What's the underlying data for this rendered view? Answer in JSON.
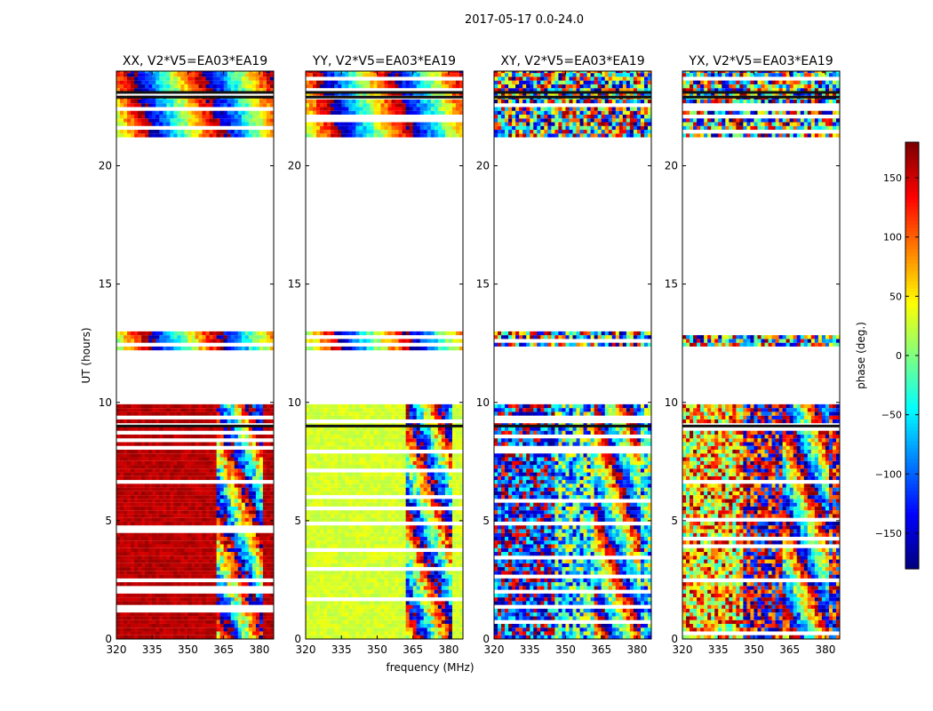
{
  "chart_data": {
    "type": "heatmap",
    "title": "2017-05-17 0.0-24.0",
    "xlabel": "frequency (MHz)",
    "ylabel": "UT (hours)",
    "xlim": [
      320,
      386
    ],
    "ylim": [
      0,
      24
    ],
    "x_ticks": [
      320,
      335,
      350,
      365,
      380
    ],
    "y_ticks": [
      0,
      5,
      10,
      15,
      20
    ],
    "panels": [
      {
        "title": "XX, V2*V5=EA03*EA19",
        "pol": "XX",
        "base_phase": 160
      },
      {
        "title": "YY, V2*V5=EA03*EA19",
        "pol": "YY",
        "base_phase": 30
      },
      {
        "title": "XY, V2*V5=EA03*EA19",
        "pol": "XY",
        "base_phase": -80
      },
      {
        "title": "YX, V2*V5=EA03*EA19",
        "pol": "YX",
        "base_phase": 130
      }
    ],
    "colorbar": {
      "label": "phase (deg.)",
      "range": [
        -180,
        180
      ],
      "ticks": [
        -150,
        -100,
        -50,
        0,
        50,
        100,
        150
      ],
      "tick_labels": [
        "−150",
        "−100",
        "−50",
        "0",
        "50",
        "100",
        "150"
      ],
      "colormap": "jet"
    },
    "data_spans_hours": [
      [
        0,
        9.9
      ],
      [
        12.2,
        12.9
      ],
      [
        21.2,
        24.0
      ]
    ],
    "rfi_start_mhz": 361,
    "clean_band_mhz": [
      381,
      386
    ]
  }
}
